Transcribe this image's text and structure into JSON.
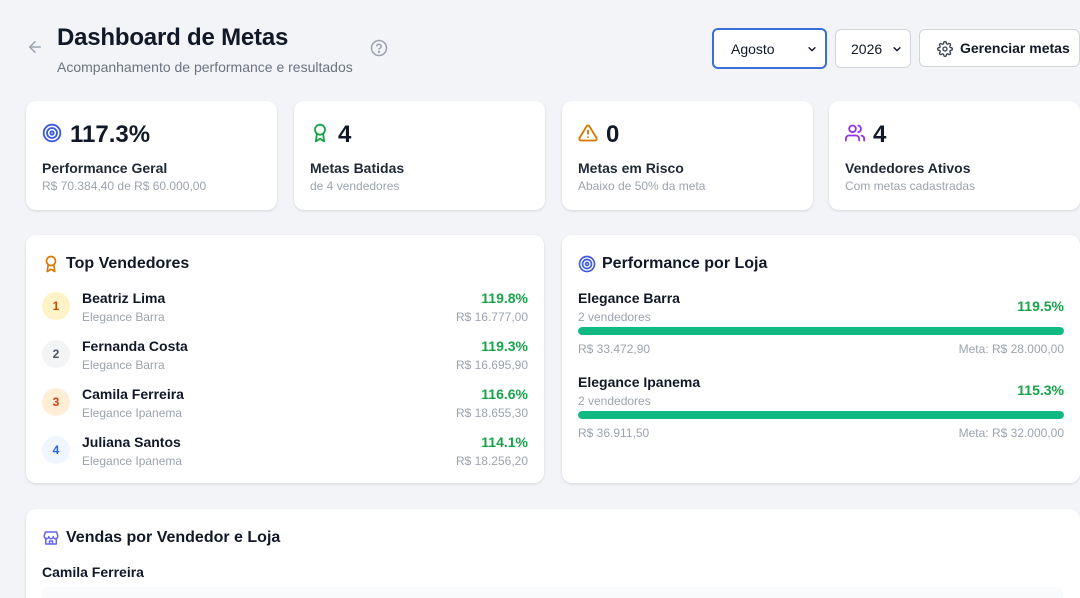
{
  "header": {
    "title": "Dashboard de Metas",
    "subtitle": "Acompanhamento de performance e resultados",
    "month": "Agosto",
    "year": "2026",
    "manage_label": "Gerenciar metas"
  },
  "stats": [
    {
      "icon": "target-icon",
      "value": "117.3%",
      "label": "Performance Geral",
      "sub": "R$ 70.384,40 de R$ 60.000,00",
      "color": "#3b5bdb"
    },
    {
      "icon": "award-icon",
      "value": "4",
      "label": "Metas Batidas",
      "sub": "de 4 vendedores",
      "color": "#16a34a"
    },
    {
      "icon": "alert-triangle-icon",
      "value": "0",
      "label": "Metas em Risco",
      "sub": "Abaixo de 50% da meta",
      "color": "#d97706"
    },
    {
      "icon": "users-icon",
      "value": "4",
      "label": "Vendedores Ativos",
      "sub": "Com metas cadastradas",
      "color": "#9333ea"
    }
  ],
  "top_sellers": {
    "title": "Top Vendedores",
    "items": [
      {
        "rank": "1",
        "name": "Beatriz Lima",
        "store": "Elegance Barra",
        "pct": "119.8%",
        "amount": "R$ 16.777,00"
      },
      {
        "rank": "2",
        "name": "Fernanda Costa",
        "store": "Elegance Barra",
        "pct": "119.3%",
        "amount": "R$ 16.695,90"
      },
      {
        "rank": "3",
        "name": "Camila Ferreira",
        "store": "Elegance Ipanema",
        "pct": "116.6%",
        "amount": "R$ 18.655,30"
      },
      {
        "rank": "4",
        "name": "Juliana Santos",
        "store": "Elegance Ipanema",
        "pct": "114.1%",
        "amount": "R$ 18.256,20"
      }
    ]
  },
  "store_performance": {
    "title": "Performance por Loja",
    "items": [
      {
        "name": "Elegance Barra",
        "sellers": "2 vendedores",
        "pct": "119.5%",
        "progress": 1.0,
        "realized": "R$ 33.472,90",
        "goal": "Meta: R$ 28.000,00"
      },
      {
        "name": "Elegance Ipanema",
        "sellers": "2 vendedores",
        "pct": "115.3%",
        "progress": 1.0,
        "realized": "R$ 36.911,50",
        "goal": "Meta: R$ 32.000,00"
      }
    ]
  },
  "sales_by_seller": {
    "title": "Vendas por Vendedor e Loja",
    "first_seller": "Camila Ferreira"
  },
  "colors": {
    "accent": "#3b6fd8",
    "success": "#16a34a",
    "bar": "#10b981"
  }
}
